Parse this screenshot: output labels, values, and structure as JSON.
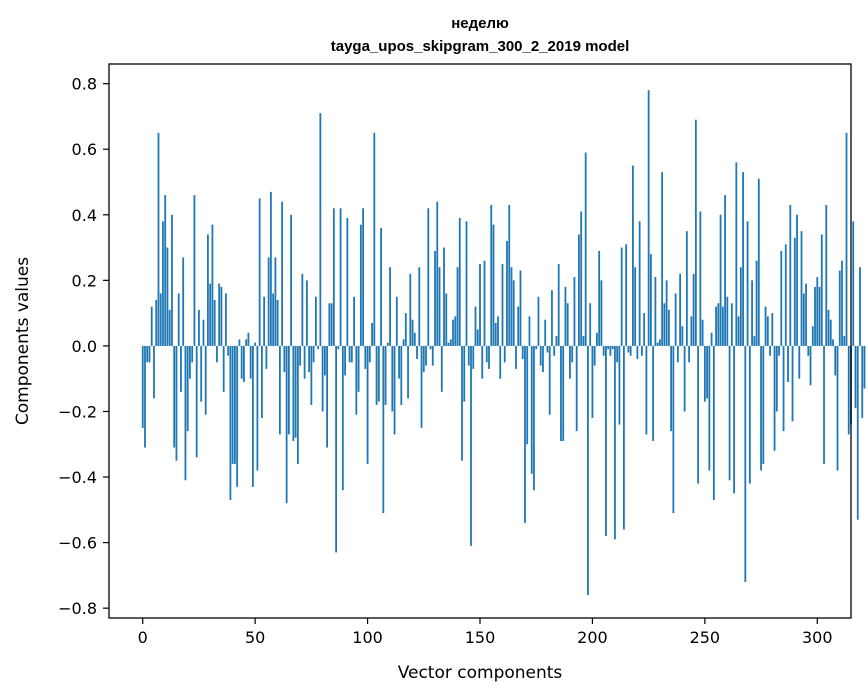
{
  "chart_data": {
    "type": "bar",
    "title": "неделю",
    "subtitle": "tayga_upos_skipgram_300_2_2019 model",
    "xlabel": "Vector components",
    "ylabel": "Components values",
    "xlim": [
      -15,
      315
    ],
    "ylim": [
      -0.83,
      0.86
    ],
    "xticks": [
      0,
      50,
      100,
      150,
      200,
      250,
      300
    ],
    "yticks": [
      -0.8,
      -0.6,
      -0.4,
      -0.2,
      0.0,
      0.2,
      0.4,
      0.6,
      0.8
    ],
    "xtick_labels": [
      "0",
      "50",
      "100",
      "150",
      "200",
      "250",
      "300"
    ],
    "ytick_labels": [
      "−0.8",
      "−0.6",
      "−0.4",
      "−0.2",
      "0.0",
      "0.2",
      "0.4",
      "0.6",
      "0.8"
    ],
    "bar_color": "#1f77b4",
    "grid": false,
    "values": [
      -0.25,
      -0.31,
      -0.05,
      -0.05,
      0.12,
      -0.16,
      0.14,
      0.65,
      0.16,
      0.38,
      0.46,
      0.3,
      0.11,
      0.4,
      -0.31,
      -0.35,
      0.16,
      -0.14,
      0.27,
      -0.41,
      -0.26,
      -0.1,
      -0.05,
      0.46,
      -0.34,
      0.11,
      -0.17,
      0.08,
      -0.21,
      0.34,
      0.19,
      0.37,
      0.14,
      -0.05,
      0.19,
      0.18,
      -0.14,
      0.16,
      -0.03,
      -0.47,
      -0.36,
      -0.36,
      -0.43,
      0.02,
      -0.1,
      -0.11,
      0.02,
      0.04,
      -0.1,
      -0.43,
      0.01,
      -0.38,
      0.45,
      -0.22,
      0.15,
      -0.07,
      0.27,
      0.47,
      0.16,
      0.27,
      0.14,
      -0.27,
      0.44,
      -0.08,
      -0.48,
      -0.27,
      0.4,
      -0.29,
      -0.28,
      -0.36,
      -0.06,
      0.22,
      -0.1,
      0.2,
      -0.08,
      -0.18,
      -0.05,
      0.15,
      -0.01,
      0.71,
      -0.2,
      -0.09,
      -0.31,
      0.13,
      0.13,
      0.42,
      -0.63,
      -0.01,
      0.42,
      -0.44,
      -0.09,
      0.39,
      -0.05,
      -0.05,
      0.15,
      -0.21,
      -0.14,
      0.37,
      0.42,
      -0.07,
      -0.36,
      -0.05,
      0.07,
      0.65,
      -0.18,
      -0.17,
      0.36,
      -0.51,
      -0.18,
      0.01,
      0.24,
      -0.2,
      -0.27,
      0.15,
      -0.1,
      -0.18,
      0.02,
      0.1,
      -0.16,
      0.22,
      0.08,
      0.04,
      -0.04,
      0.24,
      -0.25,
      -0.08,
      -0.06,
      0.42,
      -0.01,
      -0.06,
      0.29,
      0.44,
      0.24,
      -0.14,
      0.3,
      0.16,
      0.01,
      0.02,
      0.08,
      0.09,
      0.24,
      0.39,
      -0.35,
      -0.17,
      0.38,
      -0.06,
      -0.61,
      -0.07,
      0.12,
      0.05,
      0.25,
      -0.1,
      0.26,
      -0.05,
      -0.07,
      0.43,
      0.37,
      0.07,
      0.09,
      -0.1,
      0.25,
      -0.05,
      0.32,
      0.43,
      0.24,
      0.2,
      -0.07,
      0.12,
      0.23,
      -0.04,
      -0.54,
      -0.3,
      0.09,
      -0.39,
      -0.44,
      -0.01,
      0.15,
      -0.06,
      -0.08,
      0.08,
      -0.02,
      -0.21,
      0.17,
      -0.03,
      0.03,
      0.25,
      -0.29,
      -0.29,
      0.18,
      0.13,
      -0.1,
      -0.05,
      0.21,
      -0.26,
      0.34,
      0.41,
      0.03,
      0.59,
      -0.76,
      0.13,
      -0.22,
      -0.06,
      0.04,
      0.29,
      0.2,
      -0.03,
      -0.58,
      -0.01,
      -0.03,
      -0.01,
      -0.59,
      -0.05,
      -0.24,
      0.3,
      -0.56,
      0.31,
      -0.02,
      -0.03,
      0.55,
      0.24,
      -0.04,
      0.38,
      -0.03,
      0.1,
      -0.27,
      0.78,
      0.28,
      -0.29,
      0.21,
      0.01,
      0.02,
      0.53,
      0.13,
      0.2,
      0.11,
      -0.26,
      -0.51,
      0.16,
      -0.05,
      0.22,
      0.06,
      -0.2,
      0.35,
      -0.05,
      0.09,
      0.22,
      0.69,
      -0.42,
      0.41,
      0.08,
      -0.17,
      -0.16,
      -0.38,
      0.04,
      -0.47,
      0.12,
      0.13,
      0.4,
      0.12,
      0.46,
      0.15,
      -0.41,
      0.13,
      -0.45,
      0.56,
      0.09,
      0.24,
      0.53,
      -0.72,
      0.38,
      -0.42,
      0.2,
      0.03,
      0.26,
      0.51,
      -0.38,
      -0.36,
      0.12,
      0.09,
      -0.03,
      0.1,
      -0.32,
      -0.2,
      -0.03,
      0.29,
      -0.26,
      0.31,
      -0.11,
      0.43,
      -0.23,
      0.33,
      0.4,
      -0.1,
      0.35,
      0.16,
      0.19,
      -0.03,
      -0.12,
      0.06,
      0.18,
      0.21,
      0.18,
      0.34,
      -0.36,
      0.43,
      0.11,
      0.08,
      0.02,
      -0.09,
      -0.38,
      0.23,
      0.26,
      0.03,
      0.65,
      -0.27,
      -0.24,
      0.38,
      -0.19,
      -0.53,
      0.24,
      -0.22,
      -0.13
    ]
  }
}
